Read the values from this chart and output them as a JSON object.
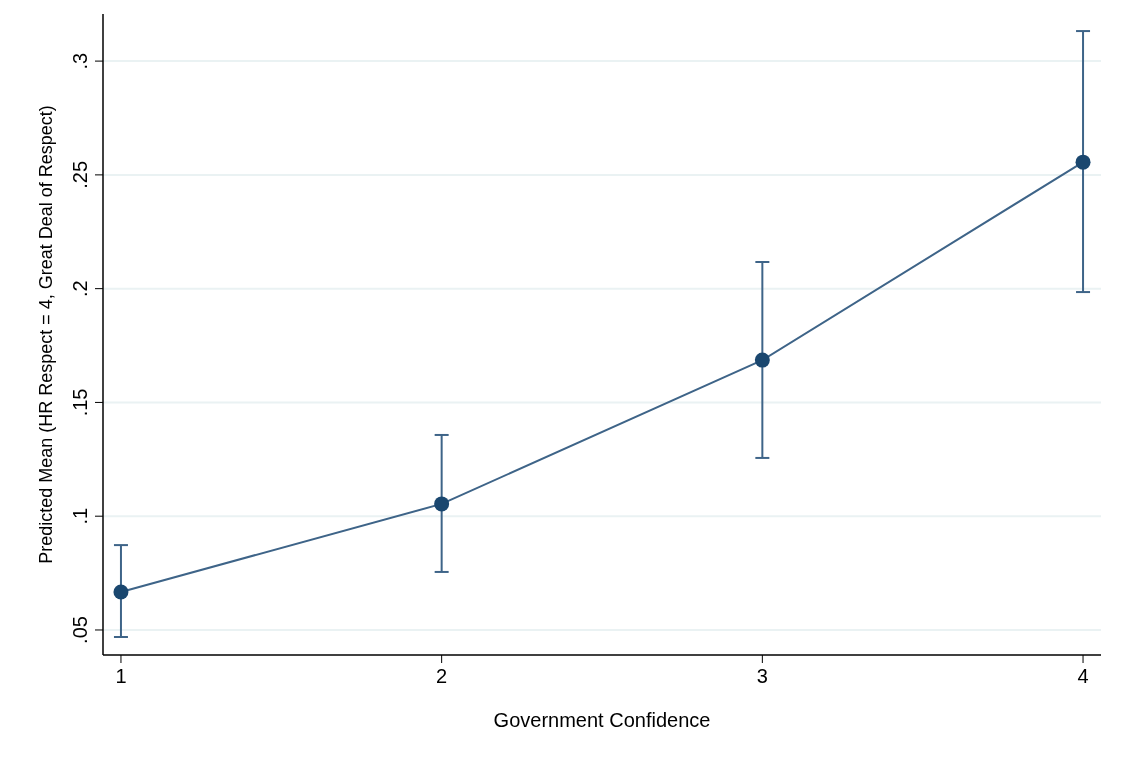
{
  "chart_data": {
    "type": "line",
    "xlabel": "Government Confidence",
    "ylabel": "Predicted Mean (HR Respect = 4, Great Deal of Respect)",
    "x": [
      1,
      2,
      3,
      4
    ],
    "series": [
      {
        "color": "#1a476f",
        "values": [
          0.0667,
          0.1054,
          0.1686,
          0.2556
        ],
        "errors": [
          [
            0.0469,
            0.0873
          ],
          [
            0.0755,
            0.1357
          ],
          [
            0.1256,
            0.2117
          ],
          [
            0.1985,
            0.3132
          ]
        ]
      }
    ],
    "xlim": [
      0.944,
      4.056
    ],
    "xticks": [
      1,
      2,
      3,
      4
    ],
    "ylim": [
      0.039,
      0.3207
    ],
    "yticks": [
      {
        "value": 0.05,
        "label": ".05"
      },
      {
        "value": 0.1,
        "label": ".1"
      },
      {
        "value": 0.15,
        "label": ".15"
      },
      {
        "value": 0.2,
        "label": ".2"
      },
      {
        "value": 0.25,
        "label": ".25"
      },
      {
        "value": 0.3,
        "label": ".3"
      }
    ],
    "grid": "y",
    "marker": "circle",
    "line_style": "solid"
  }
}
